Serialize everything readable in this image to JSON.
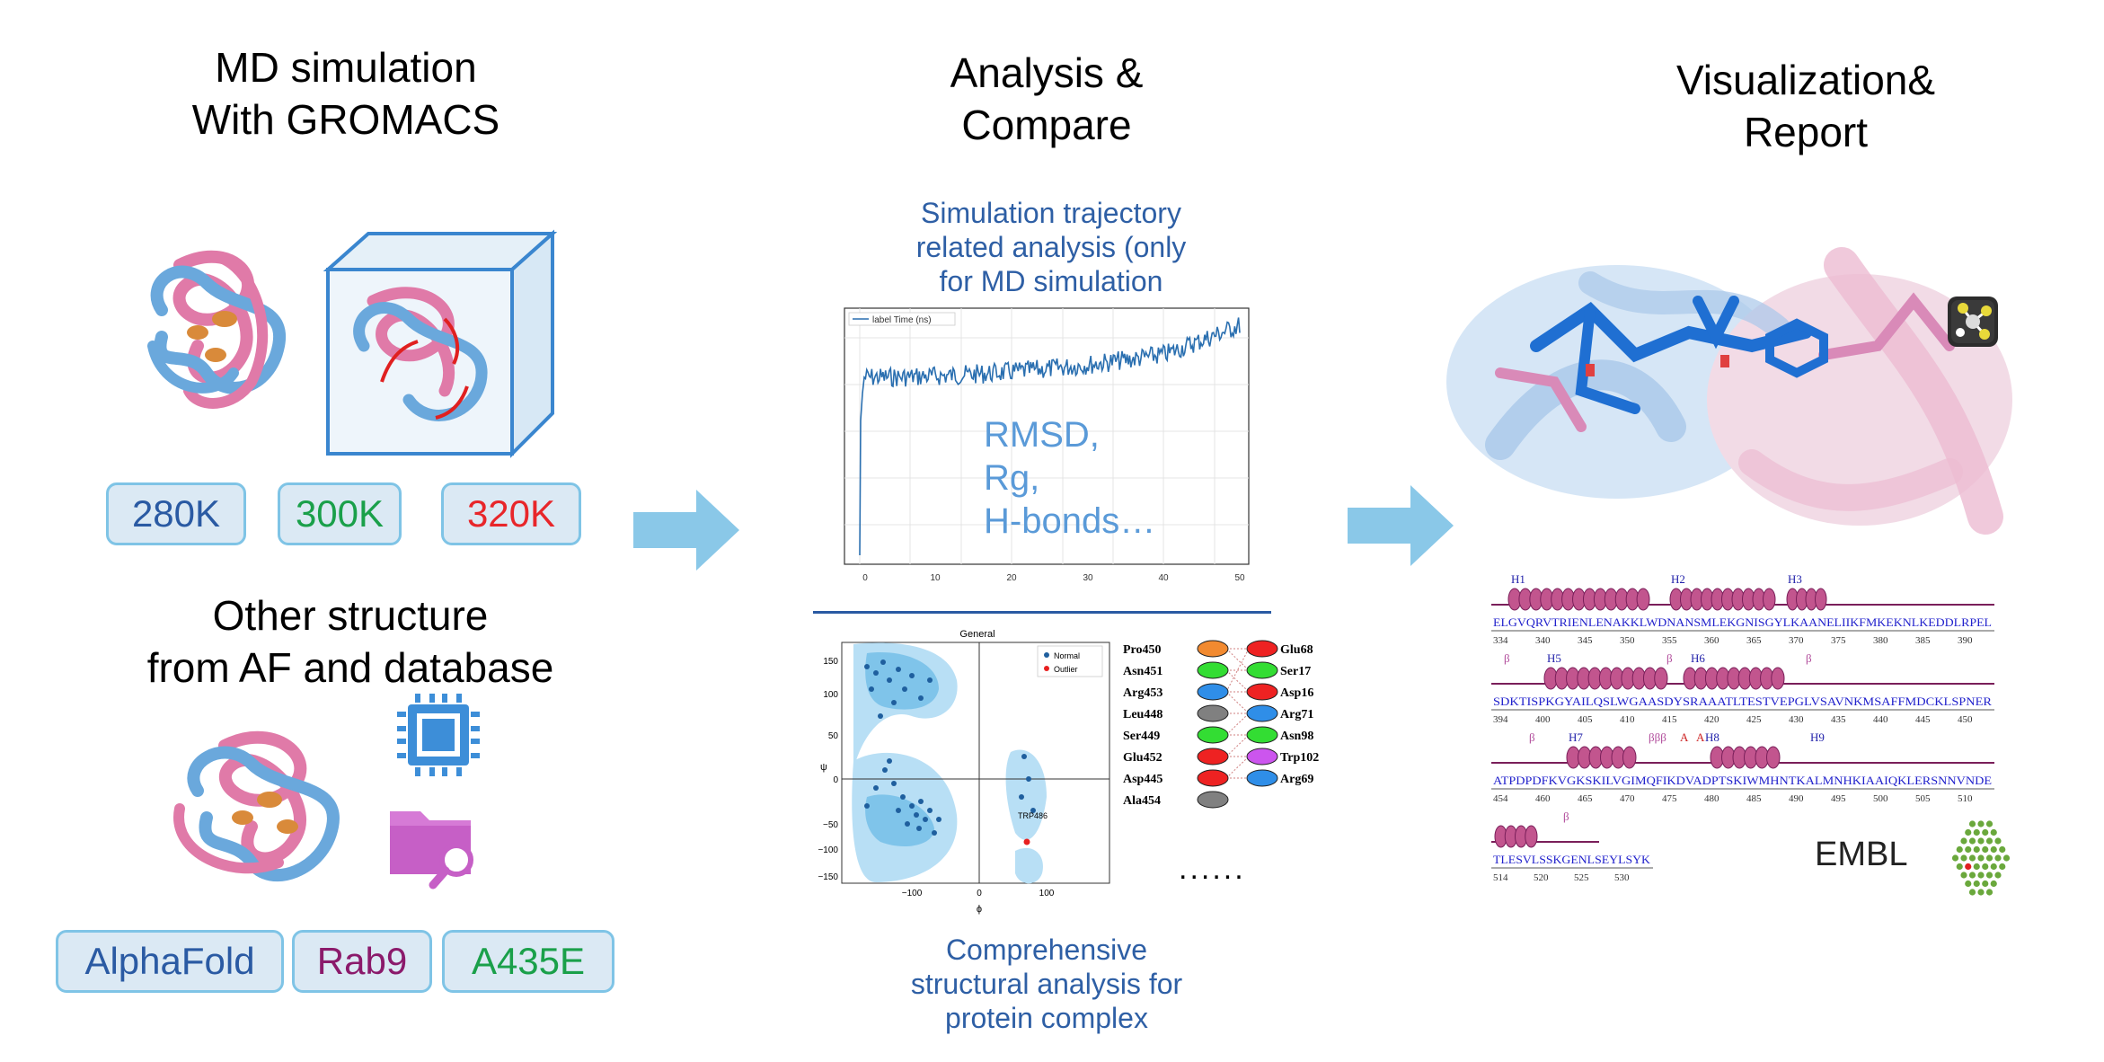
{
  "columns": {
    "md": {
      "title": "MD simulation\nWith GROMACS",
      "temps": [
        {
          "label": "280K",
          "color": "#2a5aa3"
        },
        {
          "label": "300K",
          "color": "#1aa04a"
        },
        {
          "label": "320K",
          "color": "#e8262a"
        }
      ],
      "other_title": "Other structure\nfrom AF and database",
      "sources": [
        {
          "label": "AlphaFold",
          "color": "#2a5aa3"
        },
        {
          "label": "Rab9",
          "color": "#8b1a6b"
        },
        {
          "label": "A435E",
          "color": "#1aa04a"
        }
      ]
    },
    "analysis": {
      "title": "Analysis &\nCompare",
      "traj_caption": "Simulation trajectory\nrelated analysis (only\nfor MD simulation",
      "complex_caption": "Comprehensive\nstructural analysis for\nprotein complex"
    },
    "viz": {
      "title": "Visualization&\nReport",
      "embl": "EMBL"
    }
  },
  "rmsd_plot": {
    "legend": "label Time (ns)",
    "overlay": [
      "RMSD,",
      "Rg,",
      "H-bonds…"
    ],
    "x_ticks": [
      "0",
      "10",
      "20",
      "30",
      "40",
      "50"
    ]
  },
  "rama_plot": {
    "title": "General",
    "legend": [
      "Normal",
      "Outlier"
    ],
    "outlier_label": "TRP486",
    "x_label": "ϕ",
    "y_label": "ψ",
    "x_ticks": [
      "−100",
      "0",
      "100"
    ],
    "y_ticks": [
      "150",
      "100",
      "50",
      "0",
      "−50",
      "−100",
      "−150"
    ]
  },
  "interactions": {
    "left": [
      {
        "name": "Pro450",
        "color": "#f28a30"
      },
      {
        "name": "Asn451",
        "color": "#33dd33"
      },
      {
        "name": "Arg453",
        "color": "#2f8ee8"
      },
      {
        "name": "Leu448",
        "color": "#808080"
      },
      {
        "name": "Ser449",
        "color": "#33dd33"
      },
      {
        "name": "Glu452",
        "color": "#ee2222"
      },
      {
        "name": "Asp445",
        "color": "#ee2222"
      },
      {
        "name": "Ala454",
        "color": "#808080"
      }
    ],
    "right": [
      {
        "name": "Glu68",
        "color": "#ee2222"
      },
      {
        "name": "Ser17",
        "color": "#33dd33"
      },
      {
        "name": "Asp16",
        "color": "#ee2222"
      },
      {
        "name": "Arg71",
        "color": "#2f8ee8"
      },
      {
        "name": "Asn98",
        "color": "#33dd33"
      },
      {
        "name": "Trp102",
        "color": "#cc55ee"
      },
      {
        "name": "Arg69",
        "color": "#2f8ee8"
      }
    ],
    "ellipsis": "......"
  },
  "sequence_rows": [
    {
      "helices": [
        "H1",
        "H2",
        "H3"
      ],
      "seq": "ELGVQRVTRIENLENAKKLWDNANSMLEKGNISGYLKAANELIIKFMKEKNLKEDDLRPEL",
      "nums": [
        "334",
        "340",
        "345",
        "350",
        "355",
        "360",
        "365",
        "370",
        "375",
        "380",
        "385",
        "390"
      ]
    },
    {
      "helices": [
        "β",
        "H5",
        "β",
        "H6",
        "β"
      ],
      "seq": "SDKTISPKGYAILQSLWGAASDYSRAAATLTESTVEPGLVSAVNKMSAFFMDCKLSPNER",
      "nums": [
        "394",
        "400",
        "405",
        "410",
        "415",
        "420",
        "425",
        "430",
        "435",
        "440",
        "445",
        "450"
      ]
    },
    {
      "helices": [
        "β",
        "H7",
        "βββ",
        "A",
        "A",
        "H8",
        "H9"
      ],
      "seq": "ATPDPDFKVGKSKILVGIMQFIKDVADPTSKIWMHNTKALMNHKIAAIQKLERSNNVNDE",
      "nums": [
        "454",
        "460",
        "465",
        "470",
        "475",
        "480",
        "485",
        "490",
        "495",
        "500",
        "505",
        "510"
      ]
    },
    {
      "helices": [
        "β"
      ],
      "seq": "TLESVLSSKGENLSEYLSYK",
      "nums": [
        "514",
        "520",
        "525",
        "530"
      ]
    }
  ]
}
